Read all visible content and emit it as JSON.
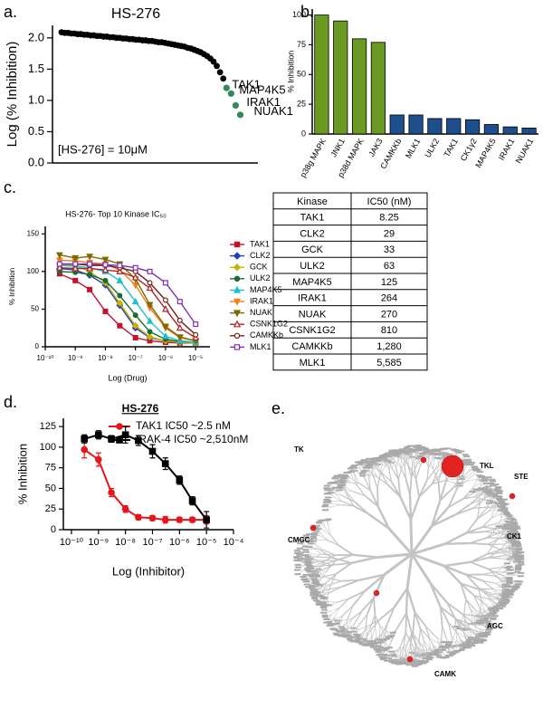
{
  "chart_data": [
    {
      "panel_label": "a.",
      "type": "dot",
      "title": "HS-276",
      "y_label": "Log (% Inhibition)",
      "ylim": [
        0,
        2.2
      ],
      "yticks": [
        {
          "value": 0,
          "label": "0.0"
        },
        {
          "value": 0.5,
          "label": "0.5"
        },
        {
          "value": 1,
          "label": "1.0"
        },
        {
          "value": 1.5,
          "label": "1.5"
        },
        {
          "value": 2,
          "label": "2.0"
        }
      ],
      "color": "#000000",
      "values": [
        2.09,
        2.08,
        2.08,
        2.07,
        2.07,
        2.06,
        2.06,
        2.05,
        2.05,
        2.04,
        2.04,
        2.03,
        2.03,
        2.02,
        2.02,
        2.01,
        2.01,
        2.0,
        2.0,
        1.99,
        1.99,
        1.98,
        1.98,
        1.97,
        1.97,
        1.96,
        1.96,
        1.95,
        1.95,
        1.94,
        1.93,
        1.93,
        1.92,
        1.91,
        1.9,
        1.89,
        1.88,
        1.87,
        1.86,
        1.84,
        1.83,
        1.81,
        1.79,
        1.77,
        1.74,
        1.71,
        1.67,
        1.62,
        1.55,
        1.45,
        1.35
      ],
      "highlight_color": "#2e8b57",
      "highlights": [
        {
          "label": "TAK1",
          "value": 1.2
        },
        {
          "label": "MAP4K5",
          "value": 1.11
        },
        {
          "label": "IRAK1",
          "value": 0.92
        },
        {
          "label": "NUAK1",
          "value": 0.77
        }
      ],
      "annotation": "[HS-276] = 10μM"
    },
    {
      "panel_label": "b.",
      "type": "bar",
      "y_label": "% Inhibition",
      "categories": [
        "p38g MAPK",
        "JNK1",
        "p38d MAPK",
        "JAK3",
        "CAMKKb",
        "MLK1",
        "ULK2",
        "TAK1",
        "CK1γ2",
        "MAP4K5",
        "IRAK1",
        "NUAK1"
      ],
      "values": [
        100,
        95,
        80,
        77,
        16,
        16,
        13,
        13,
        12,
        8,
        6,
        5
      ],
      "colors": [
        "#6a9a22",
        "#6a9a22",
        "#6a9a22",
        "#6a9a22",
        "#1f4e8c",
        "#1f4e8c",
        "#1f4e8c",
        "#1f4e8c",
        "#1f4e8c",
        "#1f4e8c",
        "#1f4e8c",
        "#1f4e8c"
      ],
      "ylim": [
        0,
        105
      ],
      "yticks": [
        0,
        25,
        50,
        75,
        100
      ]
    },
    {
      "panel_label": "c.",
      "type": "line",
      "title": "HS-276- Top 10 Kinase IC₅₀",
      "x_label": "Log (Drug)",
      "y_label": "% Inhibition",
      "xscale": "log",
      "xlim": [
        1e-10,
        3e-05
      ],
      "xticks": [
        {
          "value": 1e-10,
          "label": "10⁻¹⁰"
        },
        {
          "value": 1e-09,
          "label": "10⁻⁹"
        },
        {
          "value": 1e-08,
          "label": "10⁻⁸"
        },
        {
          "value": 1e-07,
          "label": "10⁻⁷"
        },
        {
          "value": 1e-06,
          "label": "10⁻⁶"
        },
        {
          "value": 1e-05,
          "label": "10⁻⁵"
        }
      ],
      "ylim": [
        0,
        160
      ],
      "yticks": [
        0,
        50,
        100,
        150
      ],
      "legend": "right",
      "x": [
        3e-10,
        1e-09,
        3e-09,
        1e-08,
        3e-08,
        1e-07,
        3e-07,
        1e-06,
        3e-06,
        1e-05
      ],
      "series": [
        {
          "name": "TAK1",
          "color": "#c8102e",
          "marker": "square",
          "values": [
            97,
            88,
            76,
            47,
            28,
            12,
            8,
            6,
            5,
            5
          ]
        },
        {
          "name": "CLK2",
          "color": "#1f3fbf",
          "marker": "diamond",
          "values": [
            104,
            102,
            95,
            82,
            55,
            25,
            12,
            8,
            6,
            5
          ]
        },
        {
          "name": "GCK",
          "color": "#c8b400",
          "marker": "diamond",
          "values": [
            110,
            108,
            100,
            85,
            58,
            28,
            13,
            8,
            6,
            5
          ]
        },
        {
          "name": "ULK2",
          "color": "#1a6b3a",
          "marker": "circle",
          "values": [
            100,
            99,
            96,
            88,
            68,
            42,
            20,
            10,
            7,
            6
          ]
        },
        {
          "name": "MAP4K5",
          "color": "#1fc0d0",
          "marker": "triangle",
          "values": [
            108,
            107,
            105,
            100,
            88,
            60,
            34,
            14,
            8,
            6
          ]
        },
        {
          "name": "IRAK1",
          "color": "#f07f1a",
          "marker": "triangle-down",
          "values": [
            115,
            114,
            112,
            110,
            102,
            82,
            52,
            25,
            12,
            8
          ]
        },
        {
          "name": "NUAK",
          "color": "#7a6a00",
          "marker": "triangle-down",
          "values": [
            122,
            118,
            120,
            116,
            110,
            90,
            56,
            27,
            13,
            8
          ]
        },
        {
          "name": "CSNK1G2",
          "color": "#b22222",
          "marker": "triangle-open",
          "values": [
            105,
            104,
            104,
            102,
            100,
            92,
            78,
            50,
            25,
            12
          ]
        },
        {
          "name": "CAMKKb",
          "color": "#7b1b1b",
          "marker": "circle-open",
          "values": [
            110,
            110,
            108,
            108,
            105,
            100,
            85,
            62,
            35,
            16
          ]
        },
        {
          "name": "MLK1",
          "color": "#7f2fbf",
          "marker": "square-open",
          "values": [
            110,
            110,
            110,
            109,
            108,
            105,
            100,
            85,
            60,
            30
          ]
        }
      ]
    },
    {
      "panel_label": "d.",
      "type": "line",
      "title": "HS-276",
      "x_label": "Log (Inhibitor)",
      "y_label": "% Inhibition",
      "xscale": "log",
      "xlim": [
        5e-11,
        0.0001
      ],
      "xticks": [
        {
          "value": 1e-10,
          "label": "10⁻¹⁰"
        },
        {
          "value": 1e-09,
          "label": "10⁻⁹"
        },
        {
          "value": 1e-08,
          "label": "10⁻⁸"
        },
        {
          "value": 1e-07,
          "label": "10⁻⁷"
        },
        {
          "value": 1e-06,
          "label": "10⁻⁶"
        },
        {
          "value": 1e-05,
          "label": "10⁻⁵"
        },
        {
          "value": 0.0001,
          "label": "10⁻⁴"
        }
      ],
      "ylim": [
        0,
        135
      ],
      "yticks": [
        0,
        25,
        50,
        75,
        100,
        125
      ],
      "legend": "top",
      "x": [
        3e-10,
        1e-09,
        3e-09,
        1e-08,
        3e-08,
        1e-07,
        3e-07,
        1e-06,
        3e-06,
        1e-05
      ],
      "series": [
        {
          "name": "TAK1 IC50 ~2.5 nM",
          "color": "#e8141b",
          "marker": "circle",
          "values": [
            97,
            85,
            45,
            25,
            15,
            14,
            12,
            12,
            12,
            12
          ],
          "errors": [
            10,
            8,
            5,
            4,
            3,
            3,
            4,
            3,
            3,
            5
          ]
        },
        {
          "name": "IRAK-4 IC50 ~2,510nM",
          "color": "#000000",
          "marker": "square",
          "values": [
            110,
            115,
            110,
            115,
            108,
            95,
            80,
            60,
            35,
            12
          ],
          "errors": [
            5,
            5,
            4,
            10,
            6,
            8,
            7,
            5,
            5,
            10
          ]
        }
      ]
    }
  ],
  "table": {
    "header": [
      "Kinase",
      "IC50 (nM)"
    ],
    "rows": [
      [
        "TAK1",
        "8.25"
      ],
      [
        "CLK2",
        "29"
      ],
      [
        "GCK",
        "33"
      ],
      [
        "ULK2",
        "63"
      ],
      [
        "MAP4K5",
        "125"
      ],
      [
        "IRAK1",
        "264"
      ],
      [
        "NUAK",
        "270"
      ],
      [
        "CSNK1G2",
        "810"
      ],
      [
        "CAMKKb",
        "1,280"
      ],
      [
        "MLK1",
        "5,585"
      ]
    ]
  },
  "kinome": {
    "panel_label": "e.",
    "groups": [
      "TK",
      "TKL",
      "STE",
      "CMGC",
      "CK1",
      "AGC",
      "CAMK"
    ]
  }
}
